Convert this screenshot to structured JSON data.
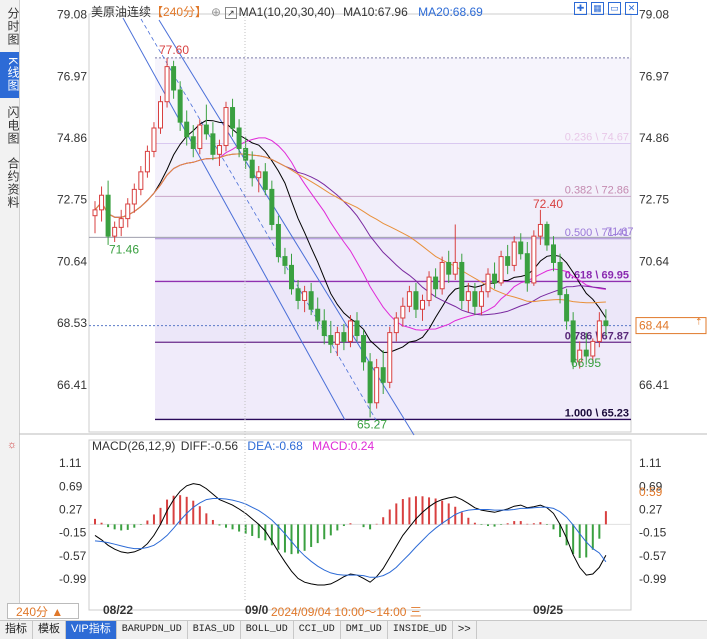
{
  "sidebar": {
    "tabs": [
      {
        "label": "分时图",
        "active": false
      },
      {
        "label": "K线图",
        "active": true
      },
      {
        "label": "闪电图",
        "active": false
      },
      {
        "label": "合约资料",
        "active": false
      }
    ]
  },
  "header": {
    "title": "美原油连续",
    "period": "【240分】",
    "ma_label": "MA1(10,20,30,40)",
    "ma10": "MA10:67.96",
    "ma20": "MA20:68.69"
  },
  "toolbar_icons": [
    "expand-icon",
    "grid-icon",
    "minimize-icon",
    "close-icon"
  ],
  "macd_header": {
    "label": "MACD(26,12,9)",
    "diff": "DIFF:-0.56",
    "dea": "DEA:-0.68",
    "macd": "MACD:0.24"
  },
  "colors": {
    "up": "#d84040",
    "down": "#3aa040",
    "ma10": "#000000",
    "ma20": "#e02ad8",
    "ma30": "#7a2aa0",
    "ma40": "#e8903a",
    "fib_fill": "#b9a6e8",
    "channel": "#4a6fd8",
    "accent": "#2d6bd6"
  },
  "chart_data": {
    "type": "candlestick",
    "symbol": "美原油连续",
    "period": "240分",
    "y_axis_ticks": [
      "79.08",
      "76.97",
      "74.86",
      "72.75",
      "70.64",
      "68.53",
      "66.41"
    ],
    "ylim": [
      64.8,
      79.1
    ],
    "x_labels": [
      "08/22",
      "09/0",
      "09/25"
    ],
    "crosshair_label": "2024/09/04 10:00～14:00 三",
    "current_price": "68.44",
    "annotations": {
      "high": "77.60",
      "low": "65.27",
      "swing_low_1": "71.46",
      "swing_high_2": "72.40",
      "swing_low_2": "66.95",
      "ma_label_right": "71.67"
    },
    "fibonacci": [
      {
        "label": "0.236 \\ 74.67",
        "price": 74.67
      },
      {
        "label": "0.382 \\ 72.86",
        "price": 72.86
      },
      {
        "label": "0.500 \\ 71.41",
        "price": 71.41
      },
      {
        "label": "0.618 \\ 69.95",
        "price": 69.95
      },
      {
        "label": "0.786 \\ 67.87",
        "price": 67.87
      },
      {
        "label": "1.000 \\ 65.23",
        "price": 65.23
      }
    ],
    "fib_top": 77.6,
    "candles": [
      [
        72.2,
        72.7,
        71.6,
        72.4
      ],
      [
        72.4,
        73.2,
        72.0,
        72.9
      ],
      [
        72.9,
        73.4,
        71.2,
        71.5
      ],
      [
        71.5,
        72.0,
        71.3,
        71.8
      ],
      [
        71.8,
        72.4,
        71.5,
        72.1
      ],
      [
        72.1,
        72.8,
        71.8,
        72.6
      ],
      [
        72.6,
        73.3,
        72.3,
        73.1
      ],
      [
        73.1,
        73.9,
        72.9,
        73.7
      ],
      [
        73.7,
        74.6,
        73.5,
        74.4
      ],
      [
        74.4,
        75.4,
        74.2,
        75.2
      ],
      [
        75.2,
        76.3,
        75.0,
        76.1
      ],
      [
        76.1,
        77.6,
        75.9,
        77.3
      ],
      [
        77.3,
        77.5,
        76.2,
        76.5
      ],
      [
        76.5,
        76.8,
        75.1,
        75.4
      ],
      [
        75.4,
        75.8,
        74.6,
        74.9
      ],
      [
        74.9,
        75.3,
        74.2,
        74.5
      ],
      [
        74.5,
        75.5,
        74.3,
        75.3
      ],
      [
        75.3,
        76.0,
        74.8,
        75.0
      ],
      [
        75.0,
        75.4,
        74.1,
        74.3
      ],
      [
        74.3,
        74.8,
        73.9,
        74.6
      ],
      [
        74.6,
        76.1,
        74.4,
        75.9
      ],
      [
        75.9,
        76.2,
        74.9,
        75.2
      ],
      [
        75.2,
        75.5,
        74.2,
        74.5
      ],
      [
        74.5,
        74.9,
        73.8,
        74.1
      ],
      [
        74.1,
        74.4,
        73.2,
        73.5
      ],
      [
        73.5,
        73.9,
        73.0,
        73.7
      ],
      [
        73.7,
        74.0,
        72.9,
        73.1
      ],
      [
        73.1,
        73.4,
        71.7,
        71.9
      ],
      [
        71.9,
        72.2,
        70.6,
        70.8
      ],
      [
        70.8,
        71.1,
        70.2,
        70.5
      ],
      [
        70.5,
        70.9,
        69.5,
        69.7
      ],
      [
        69.7,
        70.0,
        69.0,
        69.3
      ],
      [
        69.3,
        69.8,
        68.9,
        69.6
      ],
      [
        69.6,
        69.9,
        68.8,
        69.0
      ],
      [
        69.0,
        69.4,
        68.3,
        68.6
      ],
      [
        68.6,
        69.0,
        67.8,
        68.1
      ],
      [
        68.1,
        68.6,
        67.5,
        67.8
      ],
      [
        67.8,
        68.4,
        67.4,
        68.2
      ],
      [
        68.2,
        68.5,
        67.6,
        67.9
      ],
      [
        67.9,
        68.8,
        67.7,
        68.6
      ],
      [
        68.6,
        68.9,
        67.9,
        68.1
      ],
      [
        68.1,
        68.3,
        66.9,
        67.2
      ],
      [
        67.2,
        67.5,
        65.3,
        65.8
      ],
      [
        65.8,
        67.3,
        65.6,
        67.0
      ],
      [
        67.0,
        67.6,
        66.1,
        66.5
      ],
      [
        66.5,
        68.4,
        66.3,
        68.2
      ],
      [
        68.2,
        68.9,
        67.9,
        68.7
      ],
      [
        68.7,
        69.4,
        68.4,
        69.1
      ],
      [
        69.1,
        69.8,
        68.9,
        69.6
      ],
      [
        69.6,
        69.9,
        68.7,
        69.0
      ],
      [
        69.0,
        69.5,
        68.6,
        69.3
      ],
      [
        69.3,
        70.3,
        69.1,
        70.1
      ],
      [
        70.1,
        70.4,
        69.4,
        69.7
      ],
      [
        69.7,
        70.8,
        69.5,
        70.6
      ],
      [
        70.6,
        71.0,
        69.9,
        70.2
      ],
      [
        70.2,
        71.9,
        70.0,
        70.6
      ],
      [
        70.6,
        70.9,
        69.0,
        69.3
      ],
      [
        69.3,
        69.9,
        68.9,
        69.6
      ],
      [
        69.6,
        69.9,
        68.8,
        69.1
      ],
      [
        69.1,
        69.8,
        68.8,
        69.6
      ],
      [
        69.6,
        70.4,
        69.4,
        70.2
      ],
      [
        70.2,
        70.6,
        69.7,
        69.9
      ],
      [
        69.9,
        71.0,
        69.8,
        70.8
      ],
      [
        70.8,
        71.2,
        70.2,
        70.5
      ],
      [
        70.5,
        71.5,
        70.3,
        71.3
      ],
      [
        71.3,
        71.6,
        70.7,
        70.9
      ],
      [
        70.9,
        71.3,
        69.6,
        69.9
      ],
      [
        69.9,
        71.7,
        69.8,
        71.5
      ],
      [
        71.5,
        72.4,
        71.2,
        71.9
      ],
      [
        71.9,
        72.0,
        71.0,
        71.2
      ],
      [
        71.2,
        71.5,
        70.3,
        70.6
      ],
      [
        70.6,
        70.9,
        69.2,
        69.5
      ],
      [
        69.5,
        69.7,
        68.3,
        68.6
      ],
      [
        68.6,
        68.9,
        66.95,
        67.2
      ],
      [
        67.2,
        67.9,
        66.97,
        67.6
      ],
      [
        67.6,
        68.2,
        67.1,
        67.4
      ],
      [
        67.4,
        68.0,
        67.2,
        67.9
      ],
      [
        67.9,
        68.9,
        67.7,
        68.6
      ],
      [
        68.6,
        69.0,
        68.1,
        68.44
      ]
    ],
    "macd": {
      "ylim": [
        -1.3,
        1.35
      ],
      "ticks": [
        "1.11",
        "0.69",
        "0.27",
        "-0.15",
        "-0.57",
        "-0.99"
      ],
      "right_value": "0.59",
      "dif": [
        -0.2,
        -0.28,
        -0.38,
        -0.45,
        -0.5,
        -0.52,
        -0.5,
        -0.45,
        -0.35,
        -0.2,
        0.0,
        0.25,
        0.45,
        0.6,
        0.7,
        0.74,
        0.72,
        0.65,
        0.55,
        0.45,
        0.4,
        0.35,
        0.28,
        0.2,
        0.1,
        0.0,
        -0.12,
        -0.3,
        -0.5,
        -0.68,
        -0.85,
        -0.98,
        -1.05,
        -1.08,
        -1.1,
        -1.1,
        -1.08,
        -1.02,
        -0.95,
        -0.9,
        -0.92,
        -0.98,
        -1.05,
        -0.95,
        -0.8,
        -0.6,
        -0.4,
        -0.2,
        -0.05,
        0.1,
        0.22,
        0.32,
        0.4,
        0.45,
        0.48,
        0.5,
        0.45,
        0.38,
        0.3,
        0.26,
        0.24,
        0.22,
        0.25,
        0.28,
        0.33,
        0.35,
        0.3,
        0.32,
        0.35,
        0.3,
        0.2,
        0.0,
        -0.25,
        -0.55,
        -0.78,
        -0.92,
        -0.9,
        -0.78,
        -0.56
      ],
      "dea": [
        -0.3,
        -0.31,
        -0.33,
        -0.36,
        -0.39,
        -0.42,
        -0.44,
        -0.44,
        -0.42,
        -0.38,
        -0.3,
        -0.2,
        -0.07,
        0.07,
        0.2,
        0.31,
        0.39,
        0.45,
        0.47,
        0.47,
        0.46,
        0.44,
        0.41,
        0.37,
        0.31,
        0.25,
        0.17,
        0.08,
        -0.04,
        -0.17,
        -0.31,
        -0.45,
        -0.57,
        -0.67,
        -0.76,
        -0.83,
        -0.88,
        -0.91,
        -0.92,
        -0.92,
        -0.92,
        -0.93,
        -0.96,
        -0.96,
        -0.93,
        -0.87,
        -0.78,
        -0.66,
        -0.54,
        -0.41,
        -0.29,
        -0.17,
        -0.07,
        0.02,
        0.1,
        0.18,
        0.23,
        0.26,
        0.27,
        0.27,
        0.27,
        0.26,
        0.26,
        0.26,
        0.27,
        0.29,
        0.29,
        0.3,
        0.31,
        0.31,
        0.29,
        0.23,
        0.13,
        -0.01,
        -0.17,
        -0.32,
        -0.44,
        -0.52,
        -0.68
      ],
      "hist": [
        0.1,
        0.03,
        -0.05,
        -0.09,
        -0.11,
        -0.1,
        -0.06,
        -0.01,
        0.07,
        0.18,
        0.3,
        0.45,
        0.52,
        0.53,
        0.5,
        0.43,
        0.33,
        0.2,
        0.08,
        -0.02,
        -0.06,
        -0.09,
        -0.13,
        -0.17,
        -0.21,
        -0.25,
        -0.29,
        -0.38,
        -0.46,
        -0.51,
        -0.54,
        -0.53,
        -0.48,
        -0.41,
        -0.34,
        -0.27,
        -0.2,
        -0.11,
        -0.03,
        0.02,
        0.0,
        -0.05,
        -0.09,
        0.01,
        0.13,
        0.27,
        0.38,
        0.46,
        0.49,
        0.51,
        0.51,
        0.49,
        0.47,
        0.43,
        0.38,
        0.32,
        0.22,
        0.12,
        0.03,
        -0.01,
        -0.03,
        -0.04,
        -0.01,
        0.02,
        0.06,
        0.06,
        0.01,
        0.02,
        0.04,
        -0.01,
        -0.09,
        -0.23,
        -0.38,
        -0.54,
        -0.61,
        -0.6,
        -0.46,
        -0.26,
        0.24
      ]
    }
  },
  "bottom_tabs": [
    {
      "label": "指标",
      "active": false
    },
    {
      "label": "模板",
      "active": false
    },
    {
      "label": "VIP指标",
      "active": true
    },
    {
      "label": "BARUPDN_UD",
      "active": false
    },
    {
      "label": "BIAS_UD",
      "active": false
    },
    {
      "label": "BOLL_UD",
      "active": false
    },
    {
      "label": "CCI_UD",
      "active": false
    },
    {
      "label": "DMI_UD",
      "active": false
    },
    {
      "label": "INSIDE_UD",
      "active": false
    },
    {
      "label": ">>",
      "active": false
    }
  ],
  "period_selector": "240分 ▲"
}
